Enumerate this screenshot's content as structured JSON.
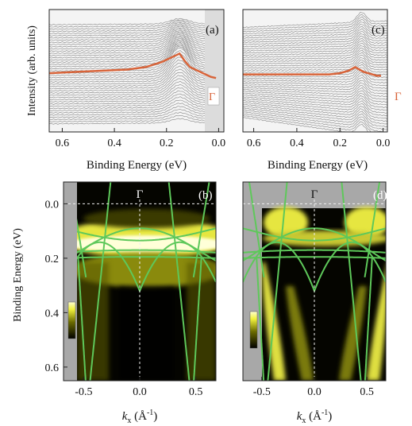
{
  "chart_data": [
    {
      "panel_label": "(a)",
      "type": "line",
      "xlabel": "Binding Energy (eV)",
      "ylabel": "Intensity (arb. units)",
      "xlim": [
        0.65,
        -0.02
      ],
      "x_ticks": [
        "0.6",
        "0.4",
        "0.2",
        "0.0"
      ],
      "marker_label": "Γ",
      "series": [
        {
          "role": "highlighted EDC at Γ",
          "color": "#d8643a",
          "x": [
            0.65,
            0.55,
            0.45,
            0.35,
            0.28,
            0.22,
            0.18,
            0.15,
            0.13,
            0.11,
            0.09,
            0.07,
            0.05,
            0.03,
            0.01
          ],
          "y": [
            0.48,
            0.49,
            0.5,
            0.51,
            0.53,
            0.57,
            0.61,
            0.64,
            0.58,
            0.53,
            0.51,
            0.49,
            0.47,
            0.45,
            0.44
          ]
        }
      ]
    },
    {
      "panel_label": "(c)",
      "type": "line",
      "xlabel": "Binding Energy (eV)",
      "xlim": [
        0.65,
        -0.02
      ],
      "x_ticks": [
        "0.6",
        "0.4",
        "0.2",
        "0.0"
      ],
      "marker_label": "Γ",
      "series": [
        {
          "role": "highlighted EDC at Γ",
          "color": "#d8643a",
          "x": [
            0.65,
            0.55,
            0.45,
            0.35,
            0.25,
            0.2,
            0.16,
            0.13,
            0.11,
            0.09,
            0.07,
            0.05,
            0.03,
            0.01
          ],
          "y": [
            0.47,
            0.47,
            0.47,
            0.47,
            0.47,
            0.48,
            0.5,
            0.53,
            0.51,
            0.49,
            0.48,
            0.47,
            0.46,
            0.46
          ]
        }
      ]
    },
    {
      "panel_label": "(b)",
      "type": "heatmap",
      "xlabel": "k_x (Å⁻¹)",
      "ylabel": "Binding Energy (eV)",
      "xlim": [
        -0.68,
        0.68
      ],
      "ylim": [
        0.65,
        -0.08
      ],
      "x_ticks": [
        "-0.5",
        "0.0",
        "0.5"
      ],
      "y_ticks": [
        "0.0",
        "0.2",
        "0.4",
        "0.6"
      ],
      "marker_label": "Γ",
      "band_color": "#5ec85a",
      "colormap": [
        "#000000",
        "#6b6b00",
        "#f2f23c",
        "#ffffd0"
      ]
    },
    {
      "panel_label": "(d)",
      "type": "heatmap",
      "xlabel": "k_x (Å⁻¹)",
      "xlim": [
        -0.68,
        0.68
      ],
      "ylim": [
        0.65,
        -0.08
      ],
      "x_ticks": [
        "-0.5",
        "0.0",
        "0.5"
      ],
      "marker_label": "Γ",
      "band_color": "#5ec85a",
      "colormap": [
        "#000000",
        "#6b6b00",
        "#f2f23c",
        "#ffffd0"
      ]
    }
  ]
}
